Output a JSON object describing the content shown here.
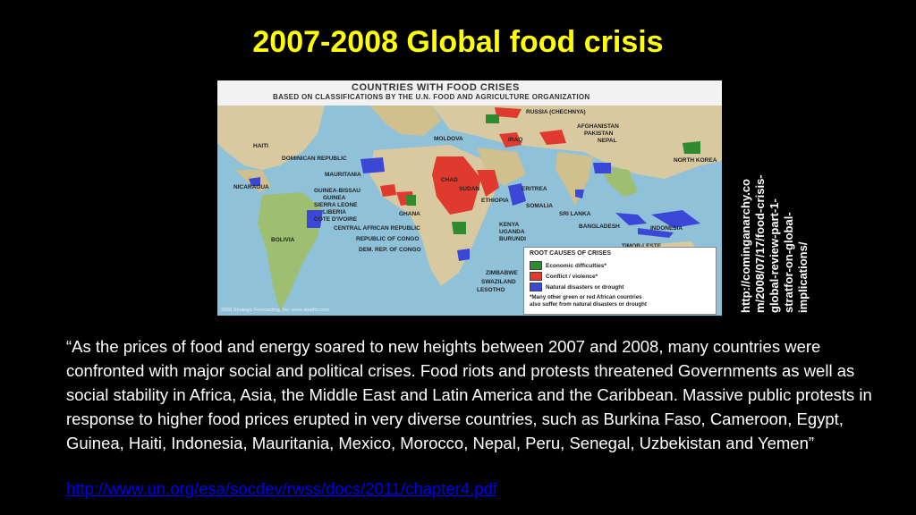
{
  "slide": {
    "title": "2007-2008 Global food crisis",
    "side_url_lines": [
      "http://cominganarchy.co",
      "m/2008/07/17/food-crisis-",
      "global-review-part-1-",
      "stratfor-on-global-",
      "implications/"
    ],
    "quote": "“As the prices of food and energy soared to new heights between 2007 and 2008, many countries were confronted with major social and political crises. Food riots and protests threatened Governments as well as social stability in Africa, Asia, the Middle East and Latin America and the Caribbean. Massive public protests in response to higher food prices erupted in very diverse countries, such as Burkina Faso, Cameroon, Egypt, Guinea, Haiti, Indonesia, Mauritania, Mexico, Morocco, Nepal, Peru, Senegal, Uzbekistan and Yemen”",
    "link": "http://www.un.org/esa/socdev/rwss/docs/2011/chapter4.pdf"
  },
  "map": {
    "title": "COUNTRIES WITH FOOD CRISES",
    "subtitle": "BASED ON CLASSIFICATIONS BY THE U.N. FOOD AND AGRICULTURE ORGANIZATION",
    "labels": {
      "russia": "RUSSIA (CHECHNYA)",
      "afghanistan": "AFGHANISTAN",
      "pakistan": "PAKISTAN",
      "nepal": "NEPAL",
      "moldova": "MOLDOVA",
      "iraq": "IRAQ",
      "north_korea": "NORTH KOREA",
      "haiti": "HAITI",
      "dominican": "DOMINICAN REPUBLIC",
      "mauritania": "MAURITANIA",
      "nicaragua": "NICARAGUA",
      "chad": "CHAD",
      "sudan": "SUDAN",
      "eritrea": "ERITREA",
      "ethiopia": "ETHIOPIA",
      "somalia": "SOMALIA",
      "guinea_bissau": "GUINEA-BISSAU",
      "guinea": "GUINEA",
      "sierra_leone": "SIERRA LEONE",
      "liberia": "LIBERIA",
      "cote": "COTE D'IVOIRE",
      "ghana": "GHANA",
      "car": "CENTRAL AFRICAN REPUBLIC",
      "congo": "REPUBLIC OF CONGO",
      "drc": "DEM. REP. OF CONGO",
      "kenya": "KENYA",
      "uganda": "UGANDA",
      "burundi": "BURUNDI",
      "sri_lanka": "SRI LANKA",
      "bangladesh": "BANGLADESH",
      "indonesia": "INDONESIA",
      "timor": "TIMOR-LESTE",
      "bolivia": "BOLIVIA",
      "zimbabwe": "ZIMBABWE",
      "swaziland": "SWAZILAND",
      "lesotho": "LESOTHO"
    },
    "legend": {
      "title": "ROOT CAUSES OF CRISES",
      "items": [
        "Economic difficulties*",
        "Conflict / violence*",
        "Natural disasters or drought"
      ],
      "note_line1": "*Many other green or red African countries",
      "note_line2": "also suffer from natural disasters or drought"
    },
    "credit": "2008 Strategic Forecasting, Inc.    www.stratfor.com",
    "colors": {
      "economic": "#2e8b2e",
      "conflict": "#e03a2f",
      "natural": "#3b47d6",
      "land": "#d9c9a0",
      "ocean": "#8fc1d9"
    }
  }
}
